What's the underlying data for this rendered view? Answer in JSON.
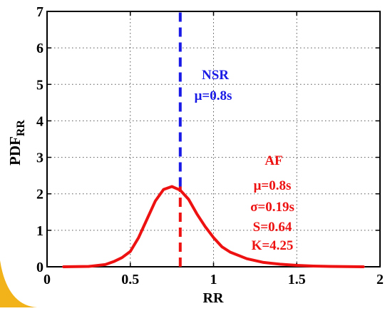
{
  "colors": {
    "background": "#ffffff",
    "corner_accent": "#f2b31a",
    "nsr": "#1a1ae6",
    "af": "#ee1111",
    "axis": "#000000",
    "grid": "#555555"
  },
  "chart_data": {
    "type": "line",
    "xlabel": "RR",
    "ylabel": "PDF",
    "ylabel_subscript": "RR",
    "xlim": [
      0,
      2
    ],
    "ylim": [
      0,
      7
    ],
    "xticks": [
      0,
      0.5,
      1,
      1.5,
      2
    ],
    "xtick_labels": [
      "0",
      "0.5",
      "1",
      "1.5",
      "2"
    ],
    "yticks": [
      0,
      1,
      2,
      3,
      4,
      5,
      6,
      7
    ],
    "ytick_labels": [
      "0",
      "1",
      "2",
      "3",
      "4",
      "5",
      "6",
      "7"
    ],
    "grid": true,
    "series": [
      {
        "name": "AF",
        "style": "solid",
        "color": "#ee1111",
        "x": [
          0.1,
          0.25,
          0.35,
          0.4,
          0.45,
          0.5,
          0.55,
          0.6,
          0.65,
          0.7,
          0.75,
          0.8,
          0.85,
          0.9,
          0.95,
          1.0,
          1.05,
          1.1,
          1.2,
          1.3,
          1.4,
          1.5,
          1.6,
          1.7,
          1.9
        ],
        "y": [
          0.0,
          0.01,
          0.06,
          0.14,
          0.25,
          0.42,
          0.8,
          1.3,
          1.8,
          2.12,
          2.2,
          2.1,
          1.85,
          1.45,
          1.1,
          0.8,
          0.55,
          0.4,
          0.22,
          0.12,
          0.07,
          0.04,
          0.02,
          0.01,
          0.0
        ]
      },
      {
        "name": "NSR",
        "style": "dashed",
        "color": "#1a1ae6",
        "x": [
          0.8,
          0.8
        ],
        "y": [
          2.2,
          7.0
        ]
      },
      {
        "name": "AF-mean",
        "style": "dashed",
        "color": "#ee1111",
        "x": [
          0.8,
          0.8
        ],
        "y": [
          0.0,
          2.2
        ]
      }
    ],
    "annotations": {
      "nsr": [
        "NSR",
        "μ=0.8s"
      ],
      "af": [
        "AF",
        "μ=0.8s",
        "σ=0.19s",
        "S=0.64",
        "K=4.25"
      ]
    }
  }
}
